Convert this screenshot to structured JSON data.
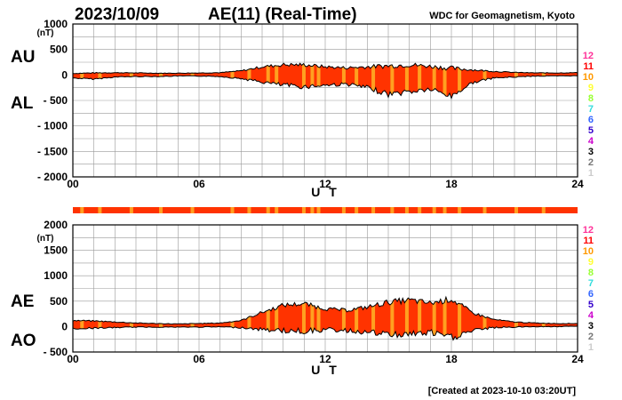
{
  "header": {
    "date": "2023/10/09",
    "title": "AE(11) (Real-Time)",
    "source": "WDC for Geomagnetism, Kyoto"
  },
  "footer": {
    "created": "[Created at 2023-10-10 03:20UT]"
  },
  "colors": {
    "fill": "#ff3300",
    "stripe": "#ffa020",
    "grid": "#999999",
    "station_scale": [
      "#ff3399",
      "#ff0000",
      "#ff9900",
      "#ffff33",
      "#99ff33",
      "#33dddd",
      "#3366ff",
      "#3300cc",
      "#cc00cc",
      "#000000",
      "#777777",
      "#cccccc"
    ]
  },
  "station_scale": [
    "12",
    "11",
    "10",
    "9",
    "8",
    "7",
    "6",
    "5",
    "4",
    "3",
    "2",
    "1"
  ],
  "chart_data": [
    {
      "type": "area",
      "panel": "top",
      "unit": "(nT)",
      "xlabel": "U T",
      "series_labels": [
        "AU",
        "AL"
      ],
      "x_ticks": [
        "00",
        "06",
        "12",
        "18",
        "24"
      ],
      "xlim": [
        0,
        24
      ],
      "ylim": [
        -2000,
        1000
      ],
      "y_ticks": [
        "1000",
        "500",
        "0",
        "- 500",
        "- 1000",
        "- 1500",
        "- 2000"
      ],
      "grid": true,
      "x": [
        0,
        1,
        2,
        3,
        4,
        5,
        6,
        7,
        8,
        9,
        10,
        11,
        12,
        13,
        14,
        15,
        16,
        17,
        18,
        19,
        20,
        21,
        22,
        23,
        24
      ],
      "series": [
        {
          "name": "AU",
          "values": [
            30,
            40,
            45,
            40,
            35,
            35,
            40,
            45,
            80,
            160,
            200,
            200,
            160,
            140,
            160,
            180,
            200,
            170,
            130,
            100,
            70,
            50,
            40,
            40,
            45
          ]
        },
        {
          "name": "AL",
          "values": [
            -60,
            -80,
            -40,
            -30,
            -30,
            -20,
            -20,
            -30,
            -70,
            -140,
            -200,
            -230,
            -200,
            -180,
            -250,
            -380,
            -330,
            -280,
            -420,
            -150,
            -60,
            -40,
            -20,
            -20,
            -15
          ]
        }
      ]
    },
    {
      "type": "area",
      "panel": "bottom",
      "unit": "(nT)",
      "xlabel": "U T",
      "series_labels": [
        "AE",
        "AO"
      ],
      "x_ticks": [
        "00",
        "06",
        "12",
        "18",
        "24"
      ],
      "xlim": [
        0,
        24
      ],
      "ylim": [
        -500,
        2000
      ],
      "y_ticks": [
        "2000",
        "1500",
        "1000",
        "500",
        "0",
        "- 500"
      ],
      "grid": true,
      "x": [
        0,
        1,
        2,
        3,
        4,
        5,
        6,
        7,
        8,
        9,
        10,
        11,
        12,
        13,
        14,
        15,
        16,
        17,
        18,
        19,
        20,
        21,
        22,
        23,
        24
      ],
      "series": [
        {
          "name": "AE",
          "values": [
            120,
            110,
            90,
            70,
            60,
            50,
            60,
            70,
            120,
            280,
            420,
            450,
            350,
            320,
            380,
            480,
            520,
            460,
            540,
            270,
            140,
            90,
            70,
            60,
            60
          ]
        },
        {
          "name": "AO",
          "values": [
            -40,
            -30,
            -20,
            -10,
            -10,
            -10,
            -10,
            -5,
            -20,
            -60,
            -80,
            -90,
            -60,
            -80,
            -110,
            -160,
            -150,
            -120,
            -220,
            -80,
            -20,
            -10,
            0,
            0,
            10
          ]
        }
      ]
    }
  ]
}
